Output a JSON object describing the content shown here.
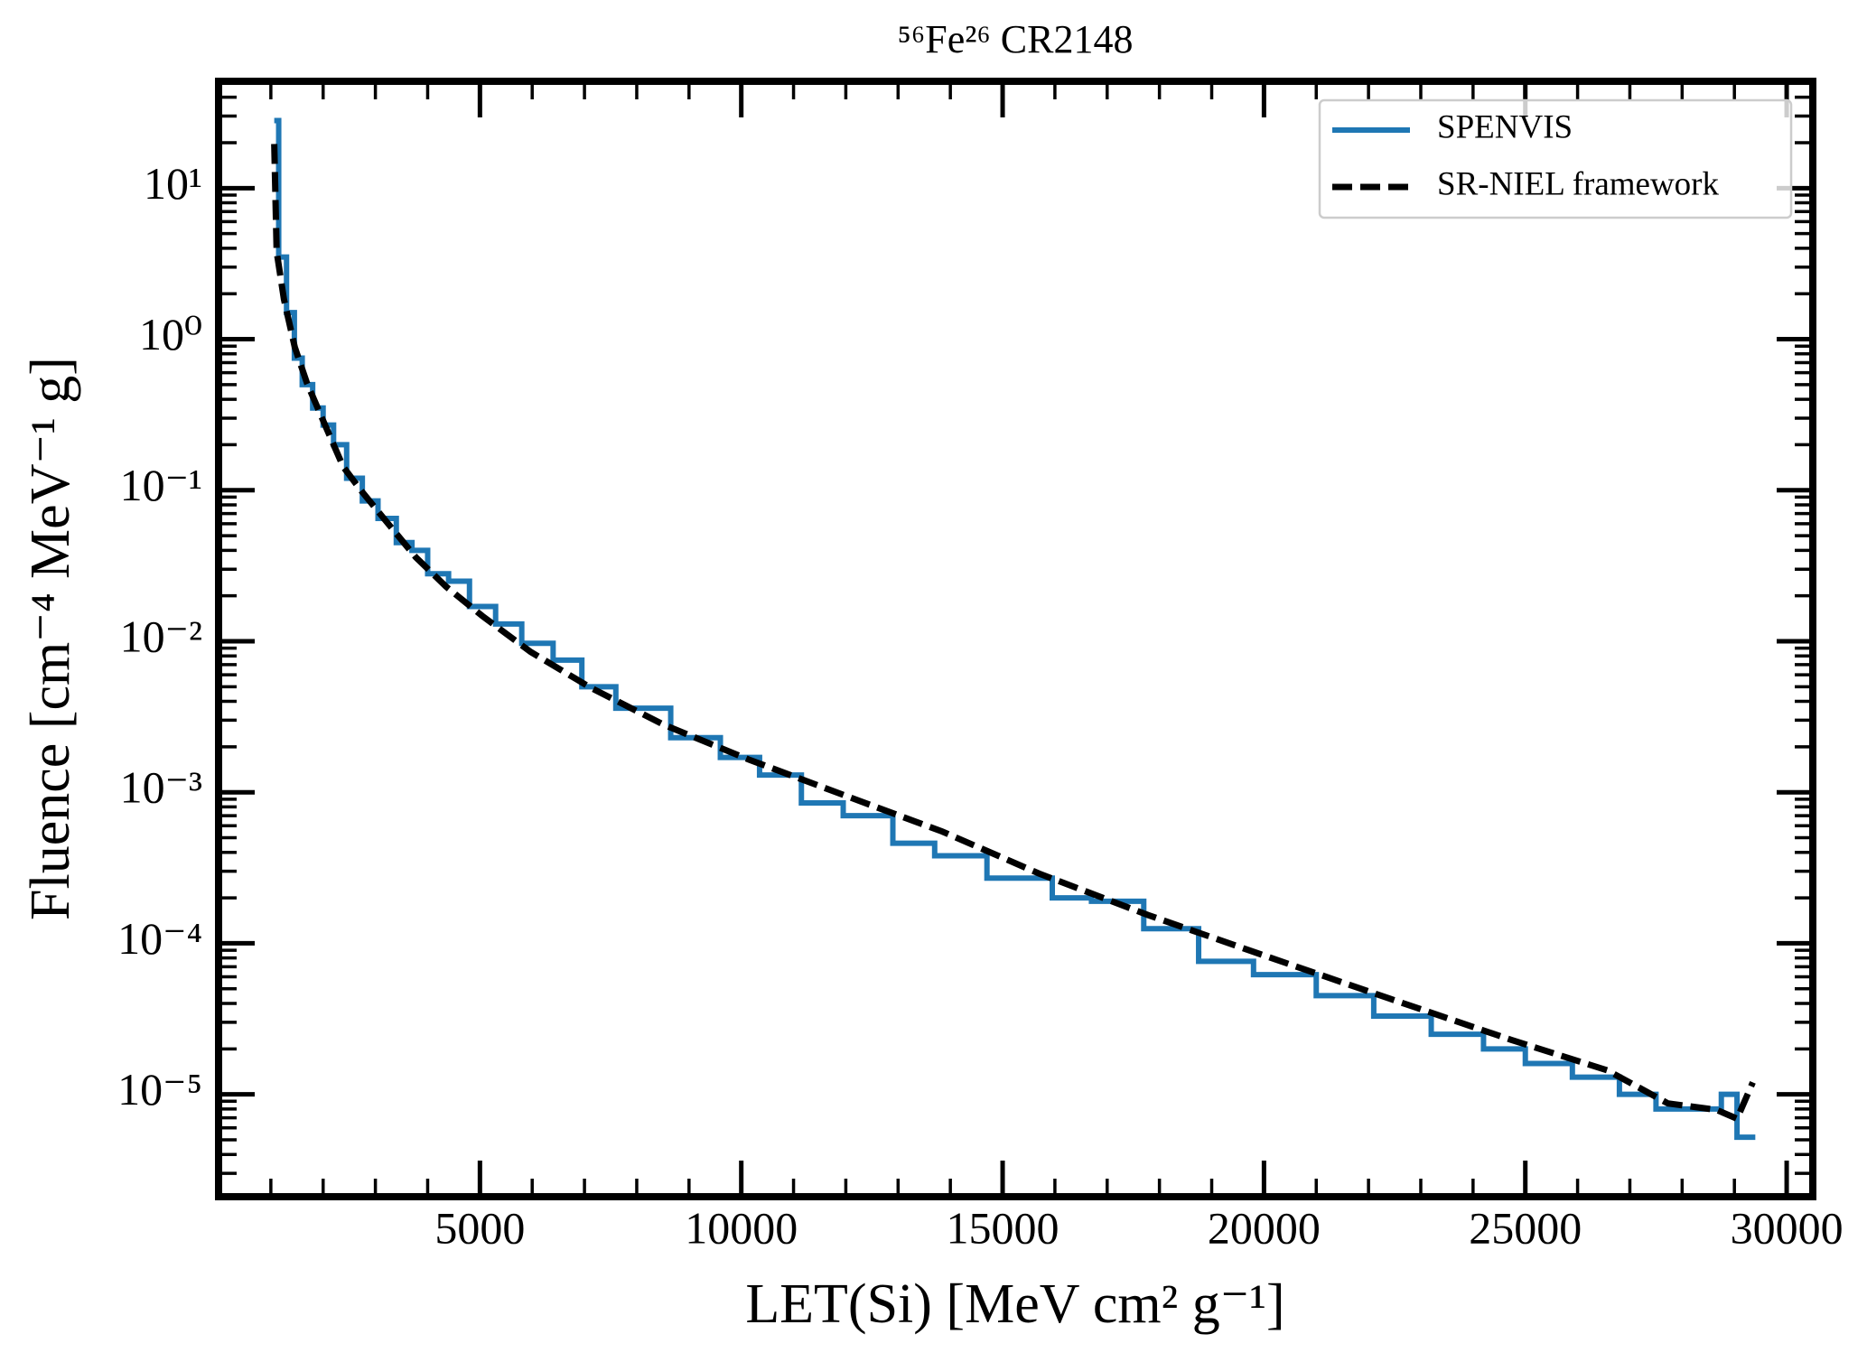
{
  "chart_data": {
    "type": "line",
    "title": "⁵⁶Fe²⁶ CR2148",
    "xlabel": "LET(Si) [MeV cm² g⁻¹]",
    "ylabel": "Fluence [cm⁻⁴ MeV⁻¹ g]",
    "xlim": [
      0,
      30500
    ],
    "ylim": [
      2.1e-06,
      51
    ],
    "yscale": "log",
    "xticks": [
      5000,
      10000,
      15000,
      20000,
      25000,
      30000
    ],
    "yticks": [
      {
        "value": 10,
        "label": "10¹"
      },
      {
        "value": 1,
        "label": "10⁰"
      },
      {
        "value": 0.1,
        "label": "10⁻¹"
      },
      {
        "value": 0.01,
        "label": "10⁻²"
      },
      {
        "value": 0.001,
        "label": "10⁻³"
      },
      {
        "value": 0.0001,
        "label": "10⁻⁴"
      },
      {
        "value": 1e-05,
        "label": "10⁻⁵"
      }
    ],
    "legend": "upper right",
    "series": [
      {
        "name": "SPENVIS",
        "color": "#1f77b4",
        "step": "post",
        "x": [
          1065,
          1150,
          1300,
          1450,
          1600,
          1800,
          2000,
          2200,
          2450,
          2750,
          3050,
          3400,
          3700,
          4000,
          4400,
          4800,
          5300,
          5800,
          6400,
          6950,
          7600,
          8650,
          9600,
          10350,
          11150,
          11950,
          12900,
          13700,
          14700,
          15950,
          16700,
          17700,
          18750,
          19800,
          21000,
          22100,
          23200,
          24200,
          25000,
          25900,
          26800,
          27500,
          28750,
          29050,
          29400
        ],
        "values": [
          28,
          3.5,
          1.5,
          0.75,
          0.5,
          0.35,
          0.27,
          0.2,
          0.12,
          0.085,
          0.065,
          0.045,
          0.04,
          0.028,
          0.025,
          0.017,
          0.013,
          0.0097,
          0.0075,
          0.005,
          0.0036,
          0.0023,
          0.0017,
          0.0013,
          0.00085,
          0.0007,
          0.00046,
          0.00038,
          0.00027,
          0.0002,
          0.00019,
          0.000125,
          7.6e-05,
          6.2e-05,
          4.5e-05,
          3.3e-05,
          2.5e-05,
          2e-05,
          1.6e-05,
          1.3e-05,
          1e-05,
          8e-06,
          1e-05,
          5.2e-06,
          5.2e-06
        ]
      },
      {
        "name": "SR-NIEL framework",
        "color": "#000000",
        "linestyle": "dashed",
        "x": [
          1065,
          1111,
          1250,
          1458,
          1690,
          2037,
          2384,
          2731,
          3194,
          3773,
          4352,
          5046,
          5972,
          7130,
          8519,
          10139,
          11991,
          13843,
          15694,
          17778,
          20093,
          22407,
          24722,
          26574,
          27731,
          28657,
          29051,
          29352
        ],
        "values": [
          19.6,
          3.8,
          1.84,
          0.885,
          0.513,
          0.27,
          0.143,
          0.099,
          0.063,
          0.036,
          0.023,
          0.0147,
          0.0085,
          0.0049,
          0.0028,
          0.00165,
          0.00095,
          0.00055,
          0.00029,
          0.000154,
          8.1e-05,
          4.3e-05,
          2.3e-05,
          1.44e-05,
          8.7e-06,
          7.9e-06,
          6.9e-06,
          1.2e-05
        ]
      }
    ]
  }
}
